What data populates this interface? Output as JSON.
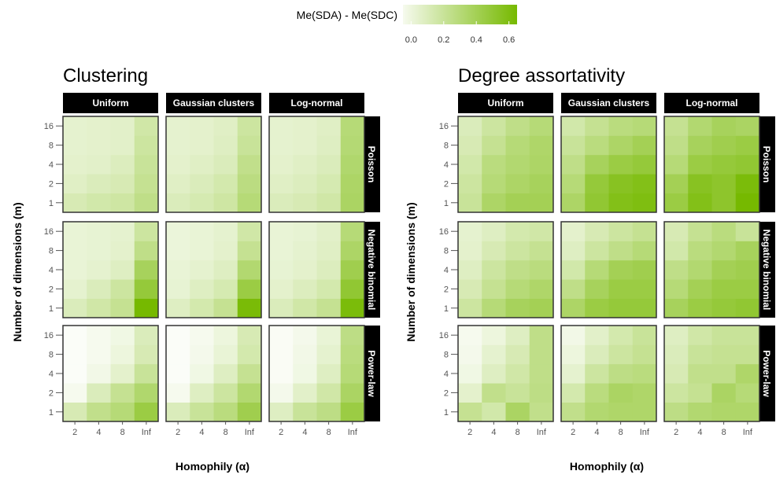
{
  "legend": {
    "title": "Me(SDA) - Me(SDC)",
    "ticks": [
      "0.0",
      "0.2",
      "0.4",
      "0.6"
    ],
    "tick_values": [
      0.0,
      0.2,
      0.4,
      0.6
    ],
    "range": [
      -0.1,
      0.65
    ],
    "colors": [
      "#ffffff",
      "#76b900"
    ]
  },
  "chart_data": [
    {
      "type": "heatmap",
      "title": "Clustering",
      "xlabel": "Homophily (α)",
      "ylabel": "Number of dimensions (m)",
      "x": [
        "2",
        "4",
        "8",
        "Inf"
      ],
      "y": [
        "1",
        "2",
        "4",
        "8",
        "16"
      ],
      "facet_columns": [
        "Uniform",
        "Gaussian clusters",
        "Log-normal"
      ],
      "facet_rows": [
        "Poisson",
        "Negative binomial",
        "Power-law"
      ],
      "cells": [
        [
          [
            [
              0.12,
              0.15,
              0.17,
              0.25
            ],
            [
              0.07,
              0.1,
              0.12,
              0.22
            ],
            [
              0.05,
              0.06,
              0.09,
              0.2
            ],
            [
              0.04,
              0.05,
              0.06,
              0.18
            ],
            [
              0.04,
              0.05,
              0.06,
              0.16
            ]
          ],
          [
            [
              0.1,
              0.13,
              0.17,
              0.3
            ],
            [
              0.07,
              0.1,
              0.14,
              0.27
            ],
            [
              0.05,
              0.07,
              0.1,
              0.24
            ],
            [
              0.04,
              0.05,
              0.08,
              0.2
            ],
            [
              0.04,
              0.05,
              0.07,
              0.18
            ]
          ],
          [
            [
              0.1,
              0.12,
              0.16,
              0.36
            ],
            [
              0.07,
              0.09,
              0.13,
              0.35
            ],
            [
              0.05,
              0.07,
              0.1,
              0.33
            ],
            [
              0.04,
              0.05,
              0.08,
              0.31
            ],
            [
              0.04,
              0.05,
              0.07,
              0.3
            ]
          ]
        ],
        [
          [
            [
              0.1,
              0.16,
              0.22,
              0.65
            ],
            [
              0.04,
              0.1,
              0.18,
              0.48
            ],
            [
              0.02,
              0.04,
              0.08,
              0.38
            ],
            [
              0.02,
              0.03,
              0.05,
              0.25
            ],
            [
              0.02,
              0.03,
              0.04,
              0.18
            ]
          ],
          [
            [
              0.08,
              0.14,
              0.22,
              0.63
            ],
            [
              0.03,
              0.08,
              0.13,
              0.45
            ],
            [
              0.02,
              0.04,
              0.08,
              0.32
            ],
            [
              0.01,
              0.02,
              0.05,
              0.22
            ],
            [
              0.01,
              0.02,
              0.04,
              0.16
            ]
          ],
          [
            [
              0.1,
              0.16,
              0.22,
              0.62
            ],
            [
              0.05,
              0.09,
              0.14,
              0.5
            ],
            [
              0.03,
              0.05,
              0.09,
              0.42
            ],
            [
              0.02,
              0.04,
              0.07,
              0.35
            ],
            [
              0.02,
              0.03,
              0.06,
              0.3
            ]
          ]
        ],
        [
          [
            [
              0.12,
              0.24,
              0.3,
              0.45
            ],
            [
              -0.05,
              0.1,
              0.22,
              0.33
            ],
            [
              -0.08,
              -0.03,
              0.05,
              0.2
            ],
            [
              -0.08,
              -0.05,
              0.0,
              0.12
            ],
            [
              -0.08,
              -0.05,
              -0.02,
              0.1
            ]
          ],
          [
            [
              0.1,
              0.2,
              0.28,
              0.42
            ],
            [
              -0.05,
              0.08,
              0.18,
              0.32
            ],
            [
              -0.08,
              -0.02,
              0.08,
              0.22
            ],
            [
              -0.08,
              -0.04,
              0.02,
              0.14
            ],
            [
              -0.08,
              -0.05,
              0.0,
              0.12
            ]
          ],
          [
            [
              0.08,
              0.2,
              0.26,
              0.45
            ],
            [
              -0.04,
              0.06,
              0.16,
              0.36
            ],
            [
              -0.07,
              -0.02,
              0.08,
              0.3
            ],
            [
              -0.07,
              -0.03,
              0.04,
              0.28
            ],
            [
              -0.07,
              -0.04,
              0.02,
              0.26
            ]
          ]
        ]
      ]
    },
    {
      "type": "heatmap",
      "title": "Degree assortativity",
      "xlabel": "Homophily (α)",
      "ylabel": "Number of dimensions (m)",
      "x": [
        "2",
        "4",
        "8",
        "Inf"
      ],
      "y": [
        "1",
        "2",
        "4",
        "8",
        "16"
      ],
      "facet_columns": [
        "Uniform",
        "Gaussian clusters",
        "Log-normal"
      ],
      "facet_rows": [
        "Poisson",
        "Negative binomial",
        "Power-law"
      ],
      "cells": [
        [
          [
            [
              0.2,
              0.35,
              0.4,
              0.4
            ],
            [
              0.18,
              0.3,
              0.35,
              0.38
            ],
            [
              0.15,
              0.28,
              0.32,
              0.35
            ],
            [
              0.12,
              0.22,
              0.3,
              0.34
            ],
            [
              0.1,
              0.18,
              0.25,
              0.3
            ]
          ],
          [
            [
              0.35,
              0.5,
              0.58,
              0.6
            ],
            [
              0.3,
              0.48,
              0.55,
              0.58
            ],
            [
              0.25,
              0.38,
              0.45,
              0.48
            ],
            [
              0.2,
              0.28,
              0.35,
              0.4
            ],
            [
              0.15,
              0.22,
              0.28,
              0.3
            ]
          ],
          [
            [
              0.45,
              0.58,
              0.52,
              0.65
            ],
            [
              0.4,
              0.55,
              0.52,
              0.62
            ],
            [
              0.3,
              0.45,
              0.48,
              0.5
            ],
            [
              0.25,
              0.38,
              0.42,
              0.45
            ],
            [
              0.22,
              0.32,
              0.38,
              0.36
            ]
          ]
        ],
        [
          [
            [
              0.18,
              0.3,
              0.38,
              0.4
            ],
            [
              0.12,
              0.22,
              0.3,
              0.34
            ],
            [
              0.08,
              0.18,
              0.25,
              0.28
            ],
            [
              0.05,
              0.12,
              0.18,
              0.22
            ],
            [
              0.04,
              0.08,
              0.14,
              0.16
            ]
          ],
          [
            [
              0.35,
              0.45,
              0.48,
              0.48
            ],
            [
              0.25,
              0.38,
              0.45,
              0.45
            ],
            [
              0.15,
              0.3,
              0.4,
              0.42
            ],
            [
              0.08,
              0.18,
              0.25,
              0.3
            ],
            [
              0.05,
              0.12,
              0.18,
              0.22
            ]
          ],
          [
            [
              0.38,
              0.45,
              0.48,
              0.5
            ],
            [
              0.3,
              0.4,
              0.45,
              0.45
            ],
            [
              0.25,
              0.32,
              0.4,
              0.42
            ],
            [
              0.15,
              0.28,
              0.32,
              0.38
            ],
            [
              0.12,
              0.22,
              0.28,
              0.2
            ]
          ]
        ],
        [
          [
            [
              0.22,
              0.15,
              0.36,
              0.24
            ],
            [
              0.05,
              0.24,
              0.2,
              0.26
            ],
            [
              -0.02,
              0.08,
              0.16,
              0.25
            ],
            [
              -0.04,
              0.04,
              0.12,
              0.25
            ],
            [
              -0.05,
              0.0,
              0.08,
              0.25
            ]
          ],
          [
            [
              0.24,
              0.32,
              0.34,
              0.34
            ],
            [
              0.14,
              0.28,
              0.36,
              0.34
            ],
            [
              0.04,
              0.18,
              0.26,
              0.28
            ],
            [
              0.0,
              0.1,
              0.18,
              0.22
            ],
            [
              -0.03,
              0.06,
              0.14,
              0.2
            ]
          ],
          [
            [
              0.26,
              0.32,
              0.34,
              0.34
            ],
            [
              0.18,
              0.22,
              0.36,
              0.3
            ],
            [
              0.12,
              0.24,
              0.24,
              0.34
            ],
            [
              0.1,
              0.2,
              0.22,
              0.22
            ],
            [
              0.08,
              0.16,
              0.2,
              0.2
            ]
          ]
        ]
      ]
    }
  ]
}
